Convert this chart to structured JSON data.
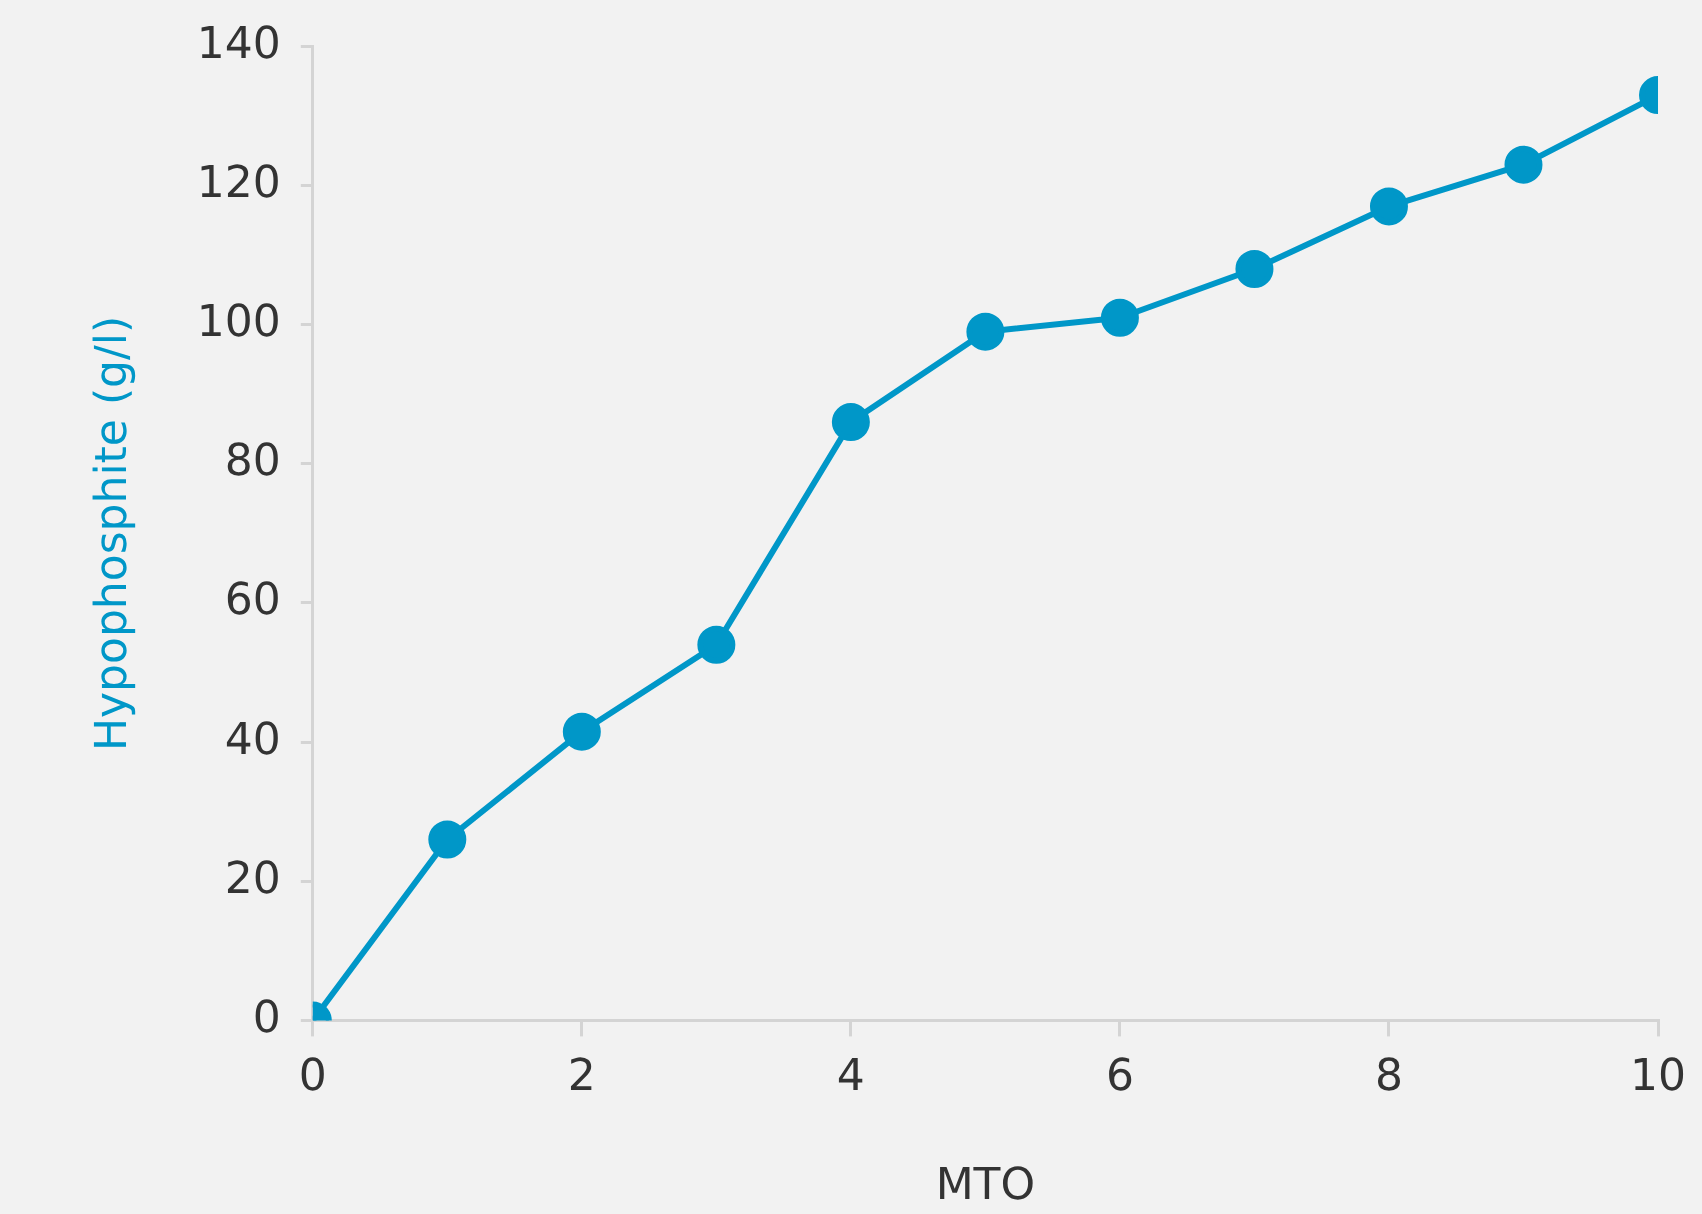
{
  "chart_data": {
    "type": "line",
    "xlabel": "MTO",
    "ylabel": "Hypophosphite (g/l)",
    "x": [
      0,
      1,
      2,
      3,
      4,
      5,
      6,
      7,
      8,
      9,
      10
    ],
    "series": [
      {
        "color": "#0097c8",
        "values": [
          0,
          26,
          41.5,
          54,
          86,
          99,
          101,
          108,
          117,
          123,
          133
        ]
      }
    ],
    "xlim": [
      0,
      10
    ],
    "xticks": [
      0,
      2,
      4,
      6,
      8,
      10
    ],
    "ylim": [
      0,
      140
    ],
    "yticks": [
      0,
      20,
      40,
      60,
      80,
      100,
      120,
      140
    ],
    "grid": false,
    "legend": false,
    "marker": "circle",
    "line_style": "solid"
  }
}
